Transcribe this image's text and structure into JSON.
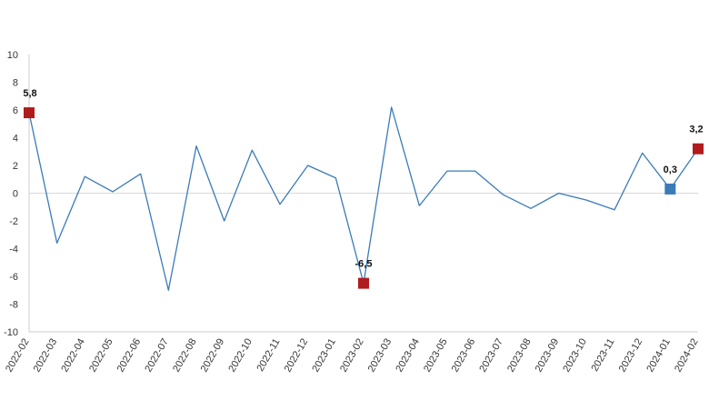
{
  "chart_data": {
    "type": "line",
    "title": "",
    "xlabel": "",
    "ylabel": "",
    "ylim": [
      -10,
      10
    ],
    "yticks": [
      -10,
      -8,
      -6,
      -4,
      -2,
      0,
      2,
      4,
      6,
      8,
      10
    ],
    "grid": false,
    "categories": [
      "2022-02",
      "2022-03",
      "2022-04",
      "2022-05",
      "2022-06",
      "2022-07",
      "2022-08",
      "2022-09",
      "2022-10",
      "2022-11",
      "2022-12",
      "2023-01",
      "2023-02",
      "2023-03",
      "2023-04",
      "2023-05",
      "2023-06",
      "2023-07",
      "2023-08",
      "2023-09",
      "2023-10",
      "2023-11",
      "2023-12",
      "2024-01",
      "2024-02"
    ],
    "series": [
      {
        "color": "#3a7bb8",
        "values": [
          5.8,
          -3.6,
          1.2,
          0.1,
          1.4,
          -7.0,
          3.4,
          -2.0,
          3.1,
          -0.8,
          2.0,
          1.1,
          -6.5,
          6.2,
          -0.9,
          1.6,
          1.6,
          -0.1,
          -1.1,
          0.0,
          -0.5,
          -1.2,
          2.9,
          0.3,
          3.2
        ]
      }
    ],
    "highlights": [
      {
        "index": 0,
        "label": "5,8",
        "color": "#b01c1c"
      },
      {
        "index": 12,
        "label": "-6,5",
        "color": "#b01c1c"
      },
      {
        "index": 23,
        "label": "0,3",
        "color": "#3a7bb8"
      },
      {
        "index": 24,
        "label": "3,2",
        "color": "#b01c1c"
      }
    ],
    "colors": {
      "line": "#3a7bb8",
      "axis": "#cccccc",
      "zero_line": "#d9d9d9"
    }
  }
}
